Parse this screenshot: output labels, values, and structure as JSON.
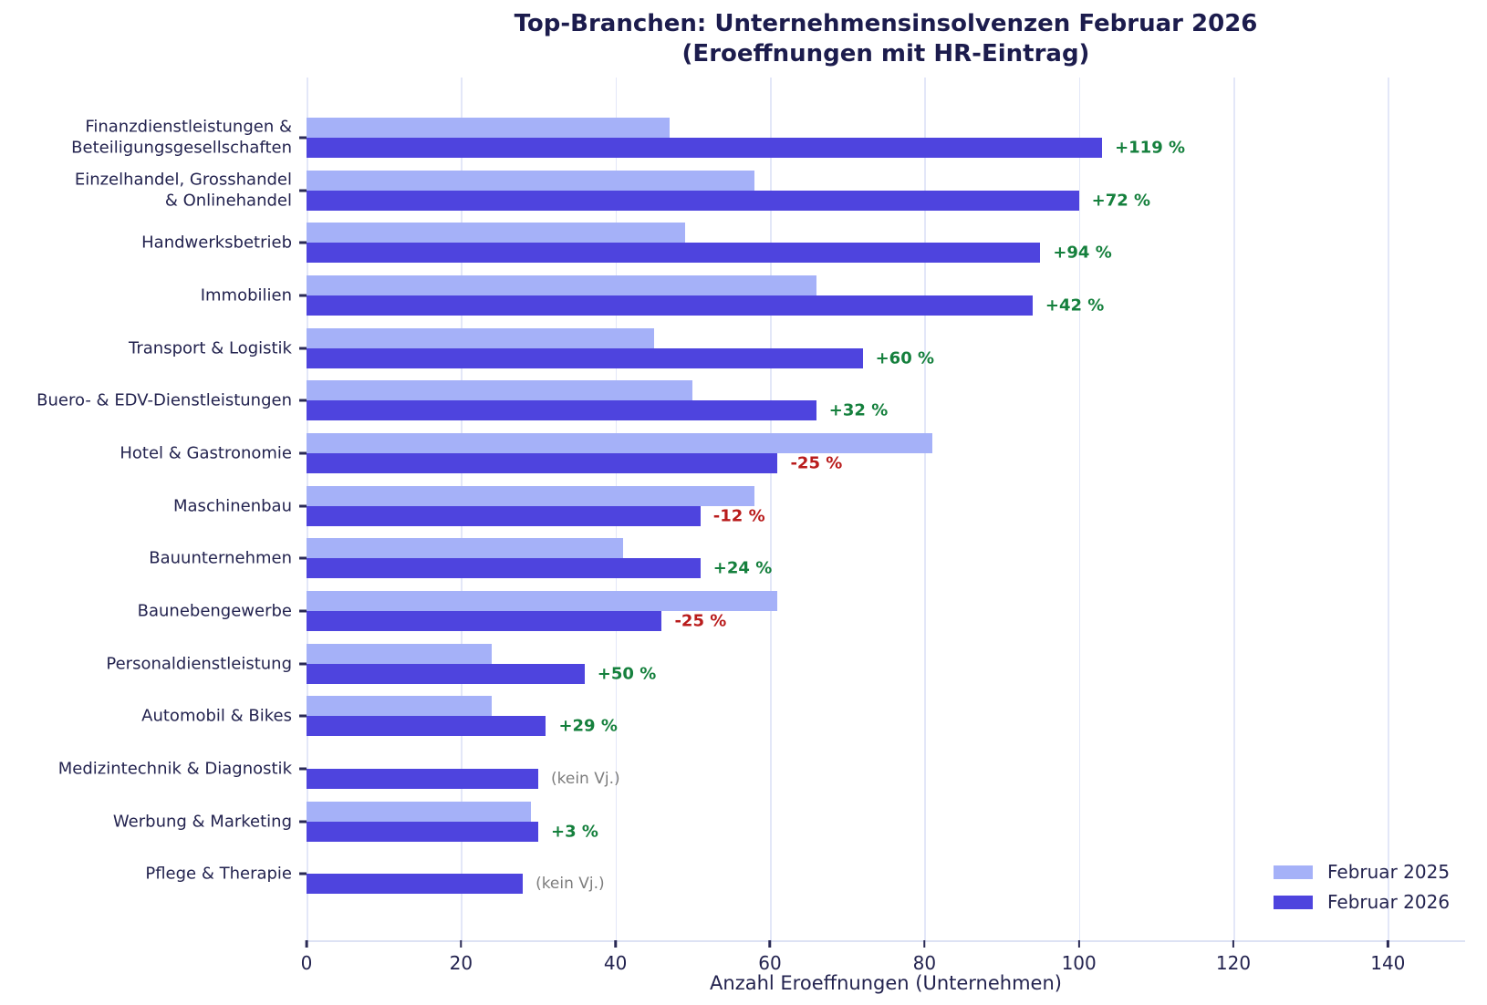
{
  "header": {
    "title_line1": "Top-Branchen: Unternehmensinsolvenzen Februar 2026",
    "title_line2": "(Eroeffnungen mit HR-Eintrag)"
  },
  "colors": {
    "bar_2025": "#a5b1f8",
    "bar_2026": "#4e44de",
    "positive": "#15803d",
    "negative": "#b91c1c",
    "neutral": "#7d7d7d",
    "grid": "#e3e7f8",
    "axis_line": "#dde2f4",
    "text": "#23234f",
    "title_text": "#1c1c4d"
  },
  "legend": {
    "items": [
      {
        "label": "Februar 2025",
        "color_key": "bar_2025"
      },
      {
        "label": "Februar 2026",
        "color_key": "bar_2026"
      }
    ]
  },
  "chart_data": {
    "type": "bar",
    "orientation": "horizontal",
    "title": "Top-Branchen: Unternehmensinsolvenzen Februar 2026\n(Eroeffnungen mit HR-Eintrag)",
    "xlabel": "Anzahl Eroeffnungen (Unternehmen)",
    "ylabel": "",
    "xlim": [
      0,
      150
    ],
    "xticks": [
      0,
      20,
      40,
      60,
      80,
      100,
      120,
      140
    ],
    "grid": true,
    "legend_position": "lower right",
    "categories": [
      "Finanzdienstleistungen &\nBeteiligungsgesellschaften",
      "Einzelhandel, Grosshandel\n& Onlinehandel",
      "Handwerksbetrieb",
      "Immobilien",
      "Transport & Logistik",
      "Buero- & EDV-Dienstleistungen",
      "Hotel & Gastronomie",
      "Maschinenbau",
      "Bauunternehmen",
      "Baunebengewerbe",
      "Personaldienstleistung",
      "Automobil & Bikes",
      "Medizintechnik & Diagnostik",
      "Werbung & Marketing",
      "Pflege & Therapie"
    ],
    "series": [
      {
        "name": "Februar 2025",
        "values": [
          47,
          58,
          49,
          66,
          45,
          50,
          81,
          58,
          41,
          61,
          24,
          24,
          null,
          29,
          null
        ]
      },
      {
        "name": "Februar 2026",
        "values": [
          103,
          100,
          95,
          94,
          72,
          66,
          61,
          51,
          51,
          46,
          36,
          31,
          30,
          30,
          28
        ]
      }
    ],
    "annotations": [
      "+119 %",
      "+72 %",
      "+94 %",
      "+42 %",
      "+60 %",
      "+32 %",
      "-25 %",
      "-12 %",
      "+24 %",
      "-25 %",
      "+50 %",
      "+29 %",
      "(kein Vj.)",
      "+3 %",
      "(kein Vj.)"
    ]
  }
}
